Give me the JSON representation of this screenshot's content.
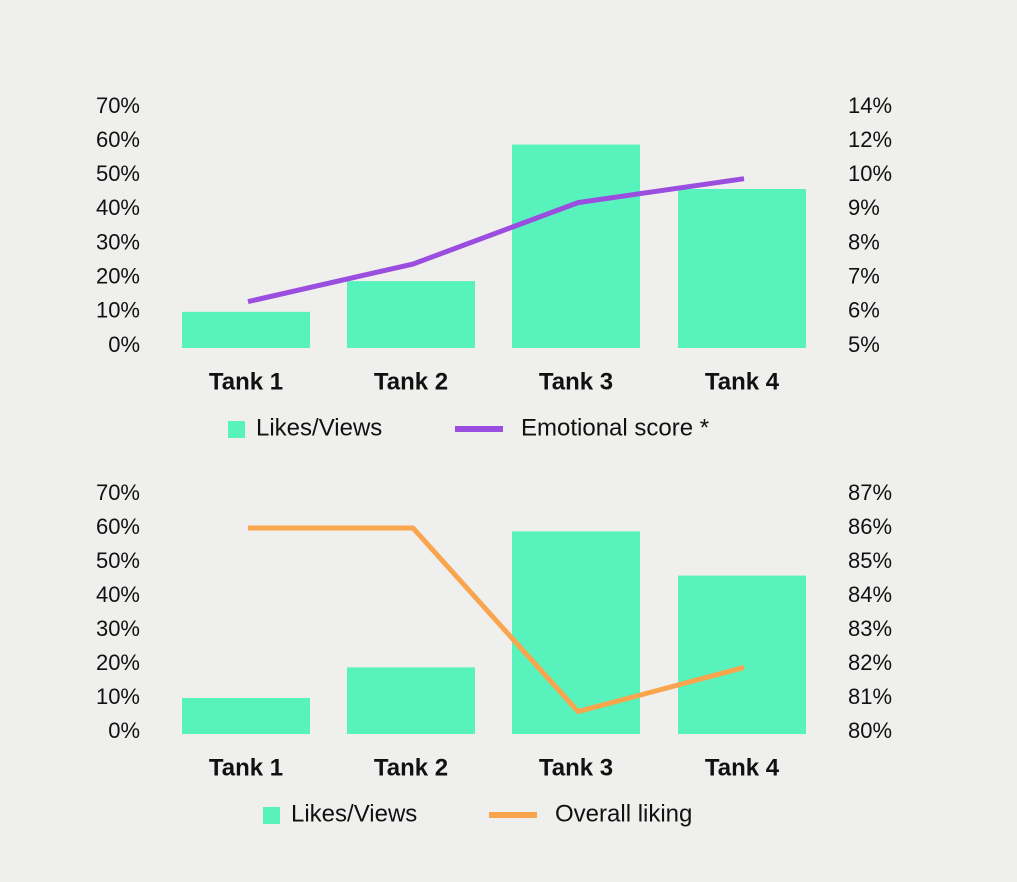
{
  "colors": {
    "background": "#efefed",
    "bar": "#58f2bd",
    "emotional_line": "#9a4ddf",
    "liking_line": "#f8a54e",
    "text": "#111111"
  },
  "chart_data": [
    {
      "type": "bar",
      "categories": [
        "Tank 1",
        "Tank 2",
        "Tank 3",
        "Tank 4"
      ],
      "y_ticks": [
        "70%",
        "60%",
        "50%",
        "40%",
        "30%",
        "20%",
        "10%",
        "0%"
      ],
      "y2_ticks": [
        "14%",
        "12%",
        "10%",
        "9%",
        "8%",
        "7%",
        "6%",
        "5%"
      ],
      "ylim": [
        0,
        70
      ],
      "y2lim": [
        5,
        14
      ],
      "series": [
        {
          "name": "Likes/Views",
          "kind": "bar",
          "axis": "left",
          "values": [
            10,
            19,
            59,
            46
          ]
        },
        {
          "name": "Emotional score *",
          "kind": "line",
          "axis": "right",
          "values": [
            6.3,
            7.4,
            9.2,
            9.9
          ]
        }
      ],
      "legend": [
        "Likes/Views",
        "Emotional score *"
      ],
      "legend_position": "bottom",
      "grid": false
    },
    {
      "type": "bar",
      "categories": [
        "Tank 1",
        "Tank 2",
        "Tank 3",
        "Tank 4"
      ],
      "y_ticks": [
        "70%",
        "60%",
        "50%",
        "40%",
        "30%",
        "20%",
        "10%",
        "0%"
      ],
      "y2_ticks": [
        "87%",
        "86%",
        "85%",
        "84%",
        "83%",
        "82%",
        "81%",
        "80%"
      ],
      "ylim": [
        0,
        70
      ],
      "y2lim": [
        80,
        87
      ],
      "series": [
        {
          "name": "Likes/Views",
          "kind": "bar",
          "axis": "left",
          "values": [
            10,
            19,
            59,
            46
          ]
        },
        {
          "name": "Overall liking",
          "kind": "line",
          "axis": "right",
          "values": [
            86.0,
            86.0,
            80.6,
            81.9
          ]
        }
      ],
      "legend": [
        "Likes/Views",
        "Overall liking"
      ],
      "legend_position": "bottom",
      "grid": false
    }
  ]
}
